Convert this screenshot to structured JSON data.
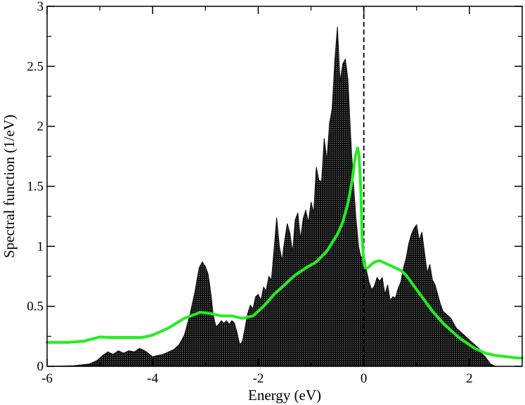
{
  "chart_data": {
    "type": "area",
    "title": "",
    "xlabel": "Energy (eV)",
    "ylabel": "Spectral function (1/eV)",
    "xlim": [
      -6,
      3
    ],
    "ylim": [
      0,
      3
    ],
    "xticks": [
      -6,
      -4,
      -2,
      0,
      2
    ],
    "yticks": [
      0,
      0.5,
      1,
      1.5,
      2,
      2.5,
      3
    ],
    "xtick_labels": [
      "-6",
      "-4",
      "-2",
      "0",
      "2"
    ],
    "ytick_labels": [
      "0",
      "0.5",
      "1",
      "1.5",
      "2",
      "2.5",
      "3"
    ],
    "grid": false,
    "fermi_level_line": {
      "x": 0,
      "style": "dashed",
      "color": "#000000"
    },
    "series": [
      {
        "style": "filled-area",
        "color": "#111111",
        "x": [
          -6.0,
          -5.5,
          -5.2,
          -5.05,
          -4.95,
          -4.85,
          -4.75,
          -4.65,
          -4.55,
          -4.45,
          -4.35,
          -4.25,
          -4.15,
          -4.0,
          -3.8,
          -3.6,
          -3.5,
          -3.4,
          -3.3,
          -3.2,
          -3.12,
          -3.06,
          -3.0,
          -2.95,
          -2.9,
          -2.85,
          -2.8,
          -2.75,
          -2.7,
          -2.65,
          -2.6,
          -2.55,
          -2.5,
          -2.45,
          -2.4,
          -2.35,
          -2.3,
          -2.25,
          -2.2,
          -2.15,
          -2.1,
          -2.05,
          -2.0,
          -1.95,
          -1.9,
          -1.85,
          -1.8,
          -1.75,
          -1.7,
          -1.65,
          -1.6,
          -1.55,
          -1.5,
          -1.45,
          -1.4,
          -1.35,
          -1.3,
          -1.25,
          -1.2,
          -1.15,
          -1.1,
          -1.05,
          -1.0,
          -0.95,
          -0.9,
          -0.85,
          -0.8,
          -0.75,
          -0.7,
          -0.65,
          -0.6,
          -0.55,
          -0.5,
          -0.45,
          -0.4,
          -0.35,
          -0.3,
          -0.25,
          -0.2,
          -0.15,
          -0.1,
          -0.05,
          0.0,
          0.05,
          0.1,
          0.15,
          0.2,
          0.25,
          0.3,
          0.35,
          0.4,
          0.45,
          0.5,
          0.55,
          0.6,
          0.65,
          0.7,
          0.75,
          0.8,
          0.85,
          0.9,
          0.95,
          1.0,
          1.05,
          1.1,
          1.15,
          1.2,
          1.25,
          1.3,
          1.35,
          1.4,
          1.45,
          1.5,
          1.55,
          1.6,
          1.65,
          1.7,
          1.75,
          1.8,
          1.85,
          1.9,
          1.95,
          2.0,
          2.05,
          2.1,
          2.15,
          2.2,
          2.25,
          2.3,
          2.35,
          2.4,
          2.45,
          2.5
        ],
        "y": [
          0.0,
          0.005,
          0.02,
          0.05,
          0.09,
          0.12,
          0.1,
          0.13,
          0.11,
          0.13,
          0.12,
          0.15,
          0.13,
          0.08,
          0.1,
          0.14,
          0.18,
          0.26,
          0.42,
          0.62,
          0.82,
          0.87,
          0.83,
          0.77,
          0.62,
          0.42,
          0.33,
          0.35,
          0.38,
          0.36,
          0.38,
          0.35,
          0.38,
          0.36,
          0.28,
          0.18,
          0.21,
          0.32,
          0.44,
          0.51,
          0.48,
          0.58,
          0.6,
          0.55,
          0.66,
          0.63,
          0.75,
          0.72,
          0.98,
          1.24,
          1.0,
          0.88,
          1.05,
          1.19,
          1.11,
          0.95,
          1.22,
          1.28,
          1.06,
          1.23,
          1.3,
          1.2,
          1.37,
          1.28,
          1.66,
          1.55,
          1.54,
          1.9,
          1.72,
          2.02,
          2.15,
          2.55,
          2.83,
          2.37,
          2.52,
          2.56,
          2.39,
          1.92,
          1.55,
          1.24,
          1.0,
          0.9,
          0.95,
          0.8,
          0.7,
          0.64,
          0.67,
          0.74,
          0.71,
          0.74,
          0.6,
          0.68,
          0.55,
          0.58,
          0.57,
          0.65,
          0.7,
          0.82,
          0.9,
          1.02,
          1.1,
          1.15,
          1.18,
          1.05,
          1.12,
          0.95,
          0.78,
          0.85,
          0.72,
          0.68,
          0.6,
          0.52,
          0.46,
          0.44,
          0.42,
          0.4,
          0.36,
          0.32,
          0.3,
          0.28,
          0.26,
          0.24,
          0.22,
          0.2,
          0.18,
          0.16,
          0.14,
          0.1,
          0.08,
          0.05,
          0.02,
          0.01,
          0.0
        ]
      },
      {
        "style": "line",
        "color": "#22ee22",
        "x": [
          -6.0,
          -5.6,
          -5.3,
          -5.0,
          -4.8,
          -4.5,
          -4.2,
          -4.0,
          -3.7,
          -3.4,
          -3.1,
          -2.9,
          -2.7,
          -2.5,
          -2.3,
          -2.1,
          -1.9,
          -1.7,
          -1.5,
          -1.3,
          -1.1,
          -0.9,
          -0.7,
          -0.5,
          -0.4,
          -0.3,
          -0.22,
          -0.16,
          -0.12,
          -0.09,
          -0.06,
          -0.03,
          0.0,
          0.03,
          0.07,
          0.12,
          0.2,
          0.3,
          0.4,
          0.5,
          0.6,
          0.7,
          0.8,
          0.9,
          1.0,
          1.1,
          1.2,
          1.3,
          1.4,
          1.5,
          1.6,
          1.7,
          1.8,
          1.9,
          2.0,
          2.1,
          2.2,
          2.3,
          2.4,
          2.5,
          2.6,
          2.7,
          2.8,
          2.9,
          3.0
        ],
        "y": [
          0.2,
          0.2,
          0.21,
          0.245,
          0.24,
          0.24,
          0.24,
          0.26,
          0.32,
          0.4,
          0.45,
          0.44,
          0.42,
          0.42,
          0.4,
          0.42,
          0.5,
          0.6,
          0.68,
          0.76,
          0.82,
          0.87,
          0.96,
          1.1,
          1.2,
          1.36,
          1.55,
          1.75,
          1.82,
          1.76,
          1.5,
          1.05,
          0.86,
          0.82,
          0.82,
          0.84,
          0.87,
          0.88,
          0.86,
          0.84,
          0.82,
          0.8,
          0.76,
          0.7,
          0.64,
          0.58,
          0.52,
          0.46,
          0.41,
          0.36,
          0.32,
          0.28,
          0.24,
          0.21,
          0.18,
          0.15,
          0.13,
          0.11,
          0.1,
          0.09,
          0.085,
          0.08,
          0.075,
          0.07,
          0.07
        ]
      }
    ]
  }
}
